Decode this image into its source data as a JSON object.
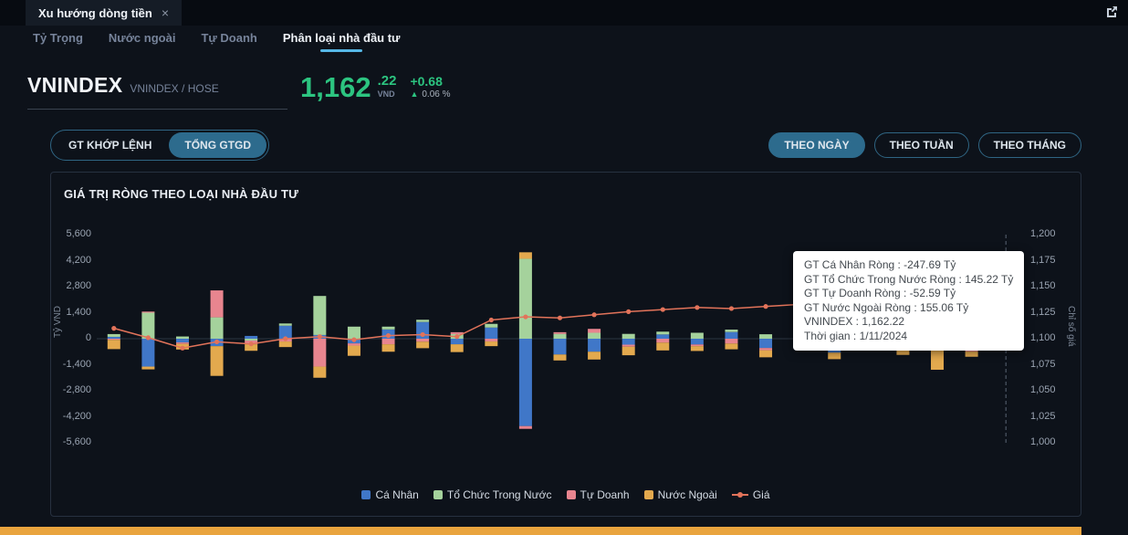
{
  "colors": {
    "accent_green": "#2cc480",
    "accent_blue": "#56b7e6",
    "pill_selected": "#2d6b8d",
    "bottom_bar": "#e9a43e"
  },
  "topbar": {
    "tab_title": "Xu hướng dòng tiền",
    "close_icon": "×"
  },
  "nav": {
    "items": [
      {
        "label": "Tỷ Trọng",
        "active": false
      },
      {
        "label": "Nước ngoài",
        "active": false
      },
      {
        "label": "Tự Doanh",
        "active": false
      },
      {
        "label": "Phân loại nhà đầu tư",
        "active": true
      }
    ]
  },
  "ticker": {
    "symbol": "VNINDEX",
    "exchange": "VNINDEX / HOSE",
    "price_int": "1,162",
    "price_dec": ".22",
    "currency": "VND",
    "change": "+0.68",
    "arrow": "▲",
    "change_pct": "0.06 %"
  },
  "toolbar": {
    "value_type": [
      {
        "label": "GT KHỚP LỆNH",
        "selected": false
      },
      {
        "label": "TỔNG GTGD",
        "selected": true
      }
    ],
    "period": [
      {
        "label": "THEO NGÀY",
        "selected": true
      },
      {
        "label": "THEO TUẦN",
        "selected": false
      },
      {
        "label": "THEO THÁNG",
        "selected": false
      }
    ]
  },
  "panel": {
    "title": "GIÁ TRỊ RÒNG THEO LOẠI NHÀ ĐẦU TƯ"
  },
  "tooltip": {
    "lines": [
      "GT Cá Nhân Ròng : -247.69 Tỷ",
      "GT Tổ Chức Trong Nước Ròng : 145.22 Tỷ",
      "GT Tự Doanh Ròng : -52.59 Tỷ",
      "GT Nước Ngoài Ròng : 155.06 Tỷ",
      "VNINDEX : 1,162.22",
      "Thời gian : 1/11/2024"
    ]
  },
  "chart_data": {
    "type": "bar+line",
    "title": "GIÁ TRỊ RÒNG THEO LOẠI NHÀ ĐẦU TƯ",
    "stacked": true,
    "grid": false,
    "legend_position": "bottom",
    "left_axis": {
      "label": "Tỷ VND",
      "min": -5600,
      "max": 5600,
      "ticks": [
        "5,600",
        "4,200",
        "2,800",
        "1,400",
        "0",
        "-1,400",
        "-2,800",
        "-4,200",
        "-5,600"
      ]
    },
    "right_axis": {
      "label": "Chỉ số giá",
      "min": 1000,
      "max": 1200,
      "ticks": [
        "1,200",
        "1,175",
        "1,150",
        "1,125",
        "1,100",
        "1,075",
        "1,050",
        "1,025",
        "1,000"
      ]
    },
    "hover_index": 26,
    "series": [
      {
        "name": "Cá Nhân",
        "color": "#4077c8",
        "values": [
          100,
          -1500,
          -200,
          -400,
          150,
          700,
          200,
          -250,
          500,
          900,
          -300,
          600,
          -4700,
          -850,
          -700,
          -320,
          230,
          -310,
          360,
          -500,
          420,
          -750,
          280,
          -350,
          -250,
          -600,
          -247.69
        ]
      },
      {
        "name": "Tổ Chức Trong Nước",
        "color": "#a5d29c",
        "values": [
          150,
          1400,
          120,
          1150,
          -100,
          120,
          2100,
          650,
          150,
          120,
          250,
          200,
          4300,
          260,
          320,
          260,
          150,
          320,
          130,
          240,
          180,
          300,
          160,
          220,
          180,
          260,
          145.22
        ]
      },
      {
        "name": "Tự Doanh",
        "color": "#e8858f",
        "values": [
          -60,
          60,
          -80,
          1450,
          -200,
          -150,
          -1500,
          -120,
          -300,
          -160,
          100,
          -150,
          -150,
          90,
          210,
          -110,
          -210,
          -90,
          -260,
          -120,
          -150,
          130,
          -200,
          -100,
          -120,
          -90,
          -52.59
        ]
      },
      {
        "name": "Nước Ngoài",
        "color": "#e3a94e",
        "values": [
          -500,
          -150,
          -300,
          -1600,
          -350,
          -300,
          -600,
          -550,
          -400,
          -350,
          -420,
          -250,
          350,
          -320,
          -420,
          -460,
          -420,
          -260,
          -310,
          -380,
          -280,
          -350,
          -330,
          -420,
          -1300,
          -280,
          155.06
        ]
      }
    ],
    "line": {
      "name": "Giá",
      "color": "#e2735a",
      "axis": "right",
      "values": [
        1110,
        1101,
        1091,
        1097,
        1095,
        1100,
        1102,
        1099,
        1103,
        1104,
        1102,
        1118,
        1121,
        1120,
        1123,
        1126,
        1128,
        1130,
        1129,
        1131,
        1133,
        1137,
        1141,
        1146,
        1150,
        1154,
        1162.22
      ]
    }
  }
}
